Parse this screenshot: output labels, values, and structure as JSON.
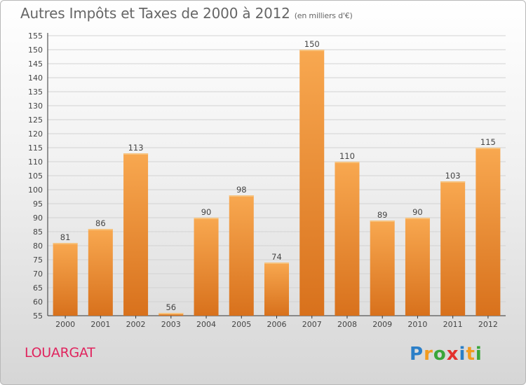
{
  "header": {
    "title": "Autres Impôts et Taxes de 2000 à 2012",
    "unit": "(en milliers d'€)"
  },
  "commune": "LOUARGAT",
  "logo": {
    "text": "Proxiti",
    "letters": [
      {
        "char": "P",
        "color": "#2b7fc8"
      },
      {
        "char": "r",
        "color": "#f29b1f"
      },
      {
        "char": "o",
        "color": "#3aa63a"
      },
      {
        "char": "x",
        "color": "#e3312d"
      },
      {
        "char": "i",
        "color": "#2b7fc8"
      },
      {
        "char": "t",
        "color": "#f29b1f"
      },
      {
        "char": "i",
        "color": "#3aa63a"
      }
    ]
  },
  "colors": {
    "bar_light": "#f8a850",
    "bar_dark": "#d8711c",
    "grid": "#d2d2d2",
    "axis_text": "#444444",
    "title": "#666666",
    "commune": "#e0245e"
  },
  "chart_data": {
    "type": "bar",
    "title": "Autres Impôts et Taxes de 2000 à 2012",
    "unit_label": "(en milliers d'€)",
    "categories": [
      "2000",
      "2001",
      "2002",
      "2003",
      "2004",
      "2005",
      "2006",
      "2007",
      "2008",
      "2009",
      "2010",
      "2011",
      "2012"
    ],
    "values": [
      81,
      86,
      113,
      56,
      90,
      98,
      74,
      150,
      110,
      89,
      90,
      103,
      115
    ],
    "ylim": [
      55,
      155
    ],
    "ytick_step": 5,
    "grid": true,
    "data_labels": true
  }
}
